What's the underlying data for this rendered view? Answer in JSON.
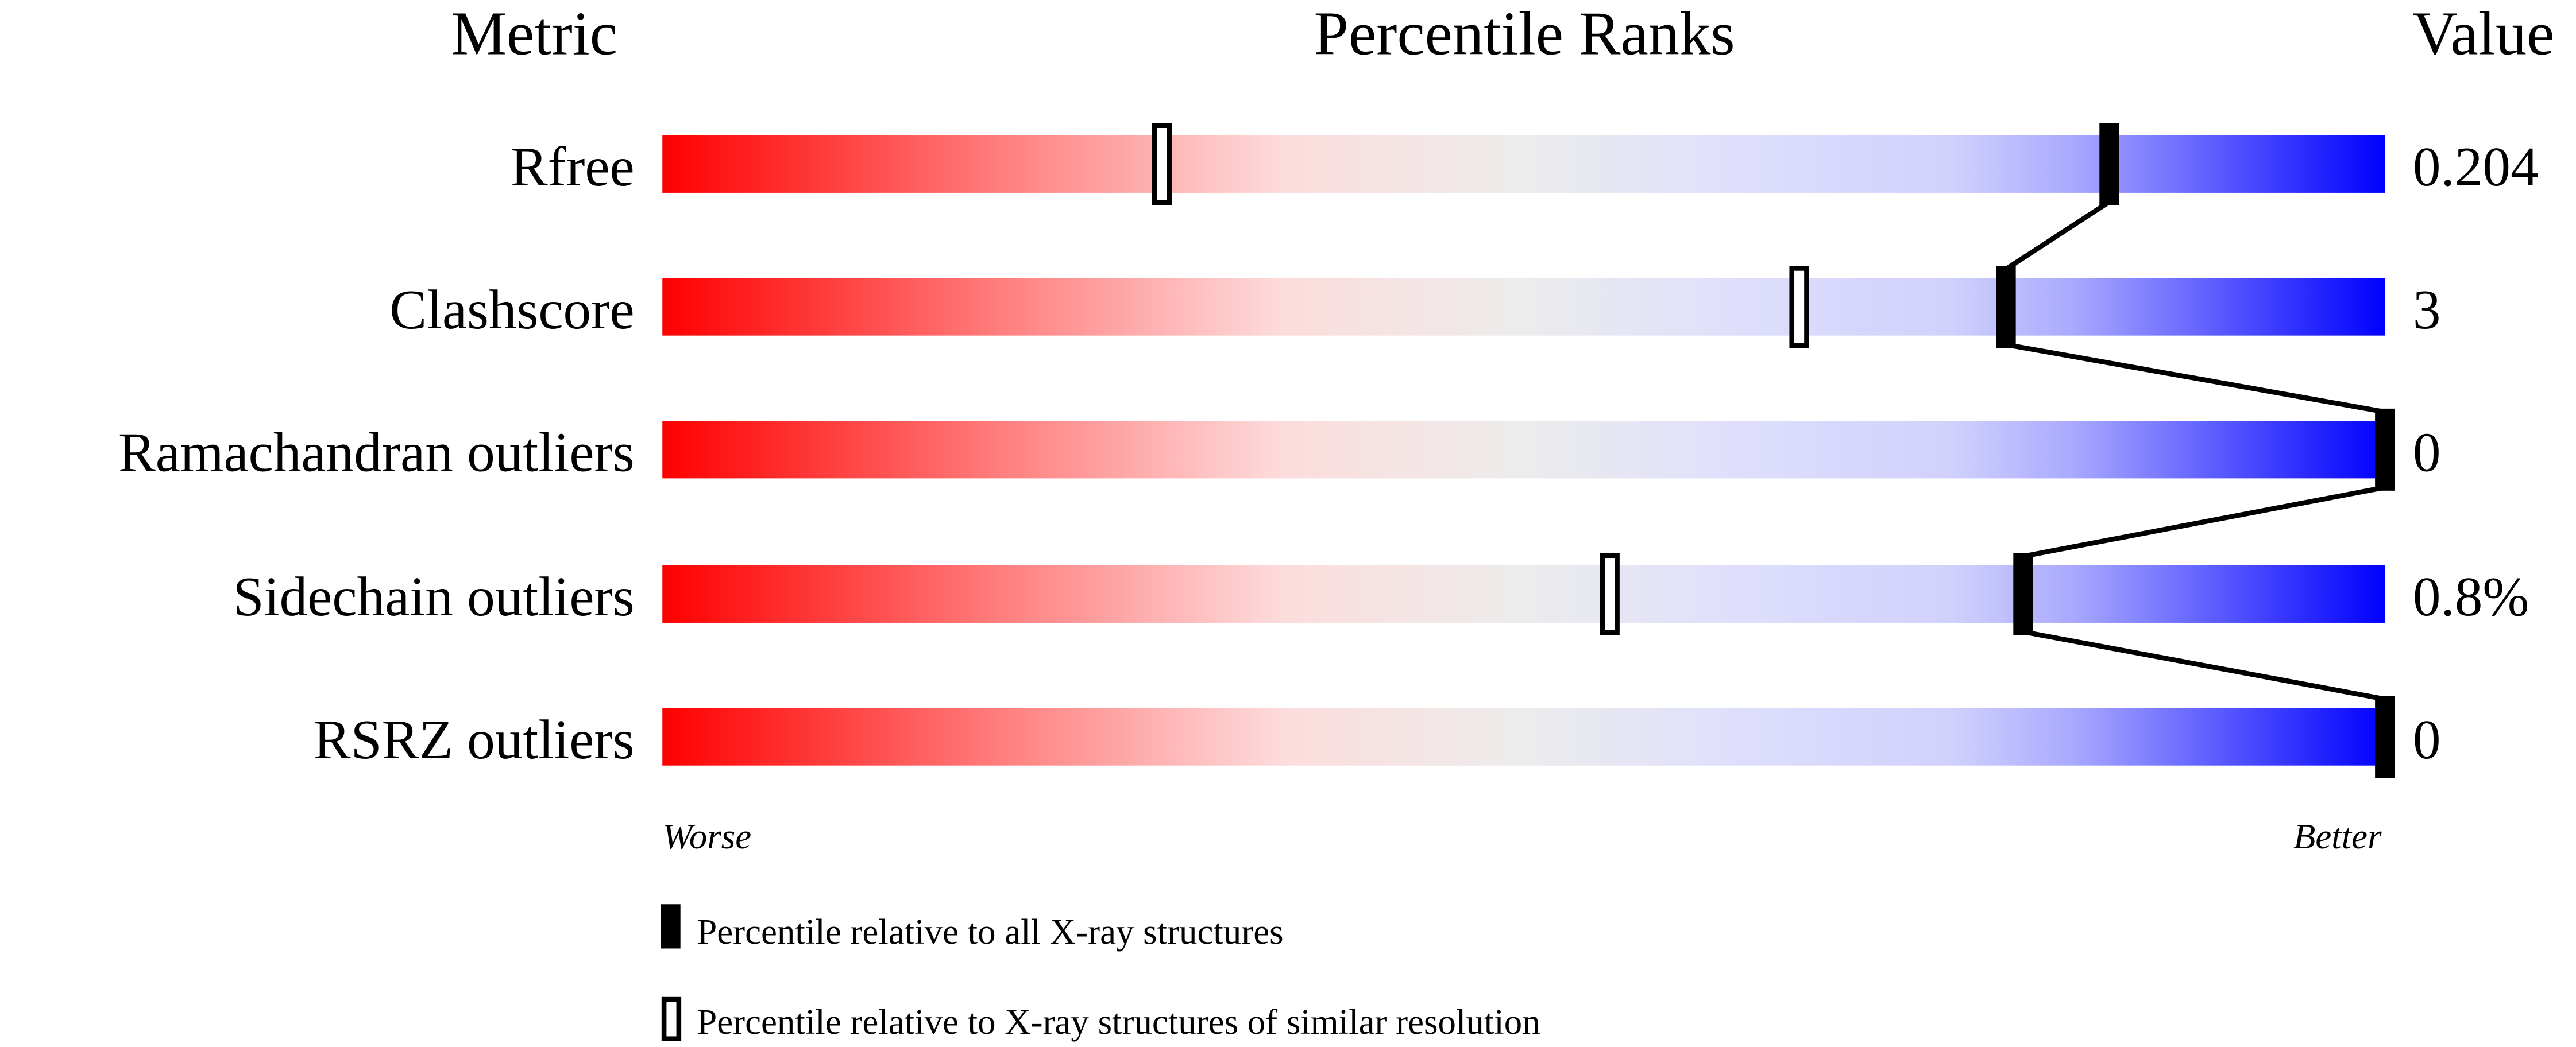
{
  "chart_data": {
    "type": "bar",
    "headers": {
      "metric": "Metric",
      "ranks": "Percentile Ranks",
      "value": "Value"
    },
    "categories": [
      "Rfree",
      "Clashscore",
      "Ramachandran outliers",
      "Sidechain outliers",
      "RSRZ outliers"
    ],
    "values": [
      "0.204",
      "3",
      "0",
      "0.8%",
      "0"
    ],
    "series": [
      {
        "name": "Percentile relative to all X-ray structures",
        "marker": "filled",
        "values": [
          84,
          78,
          100,
          79,
          100
        ]
      },
      {
        "name": "Percentile relative to X-ray structures of similar resolution",
        "marker": "hollow",
        "values": [
          29,
          66,
          null,
          55,
          null
        ]
      }
    ],
    "xlim": [
      0,
      100
    ],
    "axis_labels": {
      "left": "Worse",
      "right": "Better"
    },
    "gradient_colors": [
      "#ff0000",
      "#ff8080",
      "#fddcdc",
      "#ececec",
      "#dcdcfc",
      "#a8a8ff",
      "#0000ff"
    ],
    "legend_placement": "bottom"
  }
}
